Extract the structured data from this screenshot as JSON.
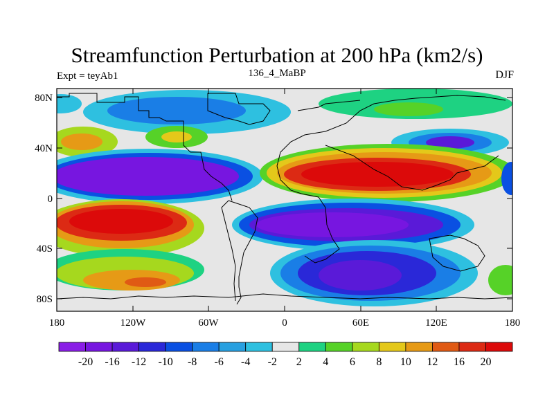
{
  "title": "Streamfunction Perturbation at 200 hPa (km2/s)",
  "subtitle_left": "Expt = teyAb1",
  "subtitle_center": "136_4_MaBP",
  "subtitle_right": "DJF",
  "y_tick_labels": [
    "80N",
    "40N",
    "0",
    "40S",
    "80S"
  ],
  "x_tick_labels": [
    "180",
    "120W",
    "60W",
    "0",
    "60E",
    "120E",
    "180"
  ],
  "colorbar": {
    "labels": [
      "-20",
      "-16",
      "-12",
      "-10",
      "-8",
      "-6",
      "-4",
      "-2",
      "2",
      "4",
      "6",
      "8",
      "10",
      "12",
      "16",
      "20"
    ],
    "colors": [
      "#8a1ee6",
      "#7716e0",
      "#5a1ad8",
      "#2a28d8",
      "#0a50e2",
      "#1a7ee6",
      "#28a0e0",
      "#2ec0e0",
      "#e6e6e6",
      "#1ed282",
      "#56d228",
      "#a6d81e",
      "#e4c81a",
      "#e69a16",
      "#e05a14",
      "#dc2a14",
      "#dc0a0a"
    ]
  },
  "colors": {
    "land_outline": "#000000",
    "background": "#e6e6e6"
  }
}
